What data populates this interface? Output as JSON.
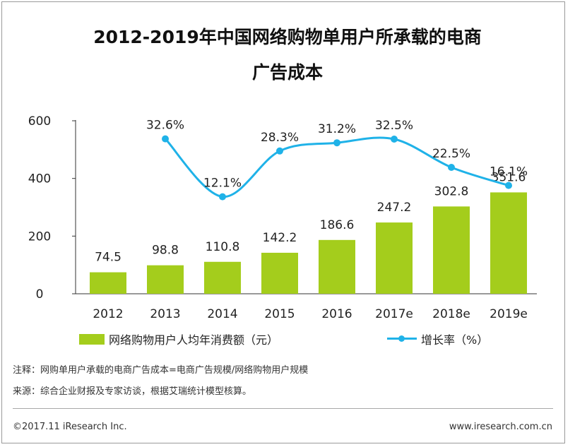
{
  "title": {
    "line1": "2012-2019年中国网络购物单用户所承载的电商",
    "line2": "广告成本"
  },
  "chart_data": {
    "type": "bar",
    "categories": [
      "2012",
      "2013",
      "2014",
      "2015",
      "2016",
      "2017e",
      "2018e",
      "2019e"
    ],
    "ylim": [
      0,
      600
    ],
    "yticks": [
      "0",
      "200",
      "400",
      "600"
    ],
    "series": [
      {
        "name": "网络购物用户人均年消费额（元）",
        "type": "bar",
        "values": [
          74.5,
          98.8,
          110.8,
          142.2,
          186.6,
          247.2,
          302.8,
          351.6
        ],
        "labels": [
          "74.5",
          "98.8",
          "110.8",
          "142.2",
          "186.6",
          "247.2",
          "302.8",
          "351.6"
        ],
        "color": "#a4cd1c"
      },
      {
        "name": "增长率（%）",
        "type": "line",
        "values": [
          null,
          32.6,
          12.1,
          28.3,
          31.2,
          32.5,
          22.5,
          16.1
        ],
        "labels": [
          "",
          "32.6%",
          "12.1%",
          "28.3%",
          "31.2%",
          "32.5%",
          "22.5%",
          "16.1%"
        ],
        "color": "#1fb2e8"
      }
    ],
    "legend": "bottom",
    "grid": false
  },
  "notes": {
    "note1": "注释：网购单用户承载的电商广告成本=电商广告规模/网络购物用户规模",
    "note2": "来源：综合企业财报及专家访谈，根据艾瑞统计模型核算。"
  },
  "footer": {
    "left": "©2017.11 iResearch Inc.",
    "right": "www.iresearch.com.cn"
  }
}
